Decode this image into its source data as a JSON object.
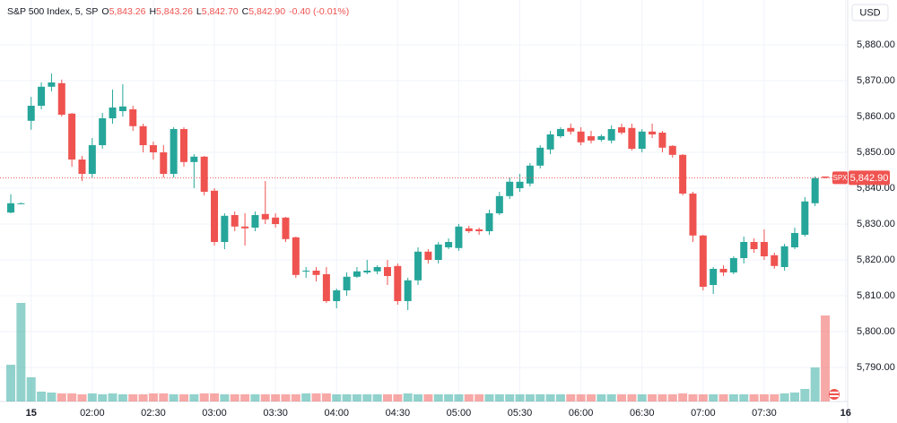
{
  "chart_data": {
    "type": "candlestick",
    "header": {
      "symbol": "S&P 500 Index, 5, SP",
      "items": [
        {
          "key": "O",
          "value": "5,843.26"
        },
        {
          "key": "H",
          "value": "5,843.26"
        },
        {
          "key": "L",
          "value": "5,842.70"
        },
        {
          "key": "C",
          "value": "5,842.90"
        }
      ],
      "change": "-0.40 (-0.01%)"
    },
    "currency": "USD",
    "symbol_tag": "SPX",
    "last_price": {
      "value": 5842.9,
      "label": "5,842.90"
    },
    "up_color": "#26a69a",
    "down_color": "#ef5350",
    "open": [
      5833.2,
      5835.8,
      5858.8,
      5863,
      5868.3,
      5869.3,
      5860.8,
      5848,
      5844,
      5852,
      5859.5,
      5861.5,
      5862,
      5857.3,
      5852,
      5850,
      5844,
      5856.5,
      5847.3,
      5848.8,
      5839.3,
      5825,
      5832.5,
      5829.3,
      5829,
      5832.8,
      5831.8,
      5831.8,
      5826.3,
      5817,
      5817,
      5816,
      5808.5,
      5811.5,
      5815.3,
      5816.5,
      5816.8,
      5818,
      5818.3,
      5808.5,
      5814.3,
      5822.3,
      5820,
      5823.5,
      5823.3,
      5828.8,
      5828.5,
      5828,
      5833,
      5837.8,
      5840,
      5841.3,
      5846.3,
      5850.8,
      5854.5,
      5856.8,
      5855.8,
      5854.5,
      5853.5,
      5853.3,
      5857,
      5856.8,
      5851,
      5855.8,
      5855.5,
      5851.8,
      5849.3,
      5838.5,
      5826.8,
      5813,
      5817.5,
      5816.5,
      5820.5,
      5825,
      5825,
      5821.3,
      5818,
      5823.5,
      5827,
      5835.8,
      5843.26
    ],
    "high": [
      5838.3,
      5836,
      5865.5,
      5869.5,
      5872,
      5870.3,
      5861,
      5849,
      5854,
      5861,
      5867.5,
      5869,
      5863,
      5858,
      5853,
      5852,
      5857,
      5857,
      5849.5,
      5849,
      5840,
      5833,
      5833.5,
      5833,
      5833.5,
      5842,
      5833,
      5832,
      5826.5,
      5818,
      5818,
      5818,
      5812,
      5816.5,
      5818,
      5820,
      5818.5,
      5820,
      5819,
      5815,
      5823.5,
      5823,
      5825,
      5826,
      5830,
      5829.5,
      5829,
      5834,
      5839,
      5843,
      5844,
      5847,
      5852,
      5856,
      5857,
      5858,
      5857,
      5856,
      5855,
      5857.5,
      5858,
      5858,
      5856.5,
      5858,
      5856,
      5852,
      5849.5,
      5839,
      5827,
      5818,
      5818.5,
      5821,
      5826.5,
      5826,
      5828.5,
      5822,
      5824.5,
      5829,
      5837.5,
      5843.3,
      5843.26
    ],
    "low": [
      5833,
      5835.6,
      5856.3,
      5862,
      5867,
      5860,
      5846,
      5842,
      5843,
      5851,
      5858,
      5860,
      5856,
      5850,
      5848,
      5843,
      5843,
      5846,
      5840,
      5838,
      5824,
      5823,
      5828,
      5824,
      5828,
      5830,
      5829,
      5825,
      5815,
      5815,
      5814,
      5808,
      5806.5,
      5810,
      5815,
      5816,
      5816,
      5813,
      5807.5,
      5806,
      5813,
      5819,
      5819,
      5823,
      5822.5,
      5827.5,
      5827,
      5827,
      5832.5,
      5837,
      5839,
      5840.5,
      5845.5,
      5849.5,
      5854,
      5855,
      5852,
      5852.5,
      5853,
      5852.5,
      5855,
      5850.5,
      5850,
      5854,
      5850,
      5848.5,
      5838,
      5825,
      5811.5,
      5810.5,
      5815.5,
      5816,
      5819,
      5822,
      5820,
      5817.5,
      5817,
      5823,
      5826.5,
      5835,
      5842.7
    ],
    "close": [
      5835.8,
      5835.8,
      5863,
      5868.3,
      5869.5,
      5860.5,
      5848,
      5844,
      5852,
      5859.5,
      5862.5,
      5862.8,
      5857.3,
      5852,
      5850,
      5844,
      5856.5,
      5847.3,
      5848.8,
      5839,
      5825,
      5832.3,
      5829.3,
      5828.8,
      5832.5,
      5831.3,
      5830,
      5825.8,
      5815.8,
      5817,
      5815.8,
      5808.5,
      5811.5,
      5815.3,
      5816.8,
      5817,
      5818,
      5815.5,
      5808.5,
      5814.3,
      5822.3,
      5820,
      5824.3,
      5825,
      5829.3,
      5828,
      5828,
      5833,
      5837.8,
      5841.8,
      5841.8,
      5846.3,
      5851.3,
      5855,
      5856.5,
      5855.8,
      5852.8,
      5853.3,
      5854.5,
      5856.5,
      5855.5,
      5851,
      5855.8,
      5855,
      5851.3,
      5849.3,
      5838.5,
      5826.8,
      5812.5,
      5817.5,
      5816.5,
      5820.5,
      5825,
      5823,
      5821,
      5818.3,
      5823.8,
      5827.5,
      5836.3,
      5842.8,
      5842.9
    ],
    "volume": [
      41,
      110,
      27,
      11,
      10,
      9,
      9,
      8,
      9,
      8,
      9,
      8,
      8,
      8,
      9,
      9,
      8,
      8,
      8,
      9,
      9,
      8,
      8,
      8,
      8,
      8,
      8,
      8,
      8,
      9,
      9,
      9,
      8,
      8,
      8,
      8,
      8,
      8,
      8,
      9,
      8,
      8,
      8,
      8,
      8,
      8,
      8,
      8,
      8,
      8,
      8,
      8,
      8,
      8,
      8,
      8,
      8,
      8,
      8,
      8,
      8,
      8,
      8,
      8,
      8,
      8,
      9,
      8,
      8,
      8,
      8,
      8,
      8,
      8,
      8,
      8,
      9,
      10,
      14,
      38,
      96
    ],
    "volume_lim": [
      0,
      130
    ],
    "xlim": [
      -1.06,
      82.2
    ],
    "xticks": [
      {
        "value": 2,
        "label": "15"
      },
      {
        "value": 8,
        "label": "02:00"
      },
      {
        "value": 14,
        "label": "02:30"
      },
      {
        "value": 20,
        "label": "03:00"
      },
      {
        "value": 26,
        "label": "03:30"
      },
      {
        "value": 32,
        "label": "04:00"
      },
      {
        "value": 38,
        "label": "04:30"
      },
      {
        "value": 44,
        "label": "05:00"
      },
      {
        "value": 50,
        "label": "05:30"
      },
      {
        "value": 56,
        "label": "06:00"
      },
      {
        "value": 62,
        "label": "06:30"
      },
      {
        "value": 68,
        "label": "07:00"
      },
      {
        "value": 74,
        "label": "07:30"
      },
      {
        "value": 82,
        "label": "16"
      }
    ],
    "ylim": [
      5780.5,
      5892.5
    ],
    "yticks": [
      {
        "value": 5880,
        "label": "5,880.00"
      },
      {
        "value": 5870,
        "label": "5,870.00"
      },
      {
        "value": 5860,
        "label": "5,860.00"
      },
      {
        "value": 5850,
        "label": "5,850.00"
      },
      {
        "value": 5840,
        "label": "5,840.00"
      },
      {
        "value": 5830,
        "label": "5,830.00"
      },
      {
        "value": 5820,
        "label": "5,820.00"
      },
      {
        "value": 5810,
        "label": "5,810.00"
      },
      {
        "value": 5800,
        "label": "5,800.00"
      },
      {
        "value": 5790,
        "label": "5,790.00"
      }
    ],
    "grid": true
  }
}
